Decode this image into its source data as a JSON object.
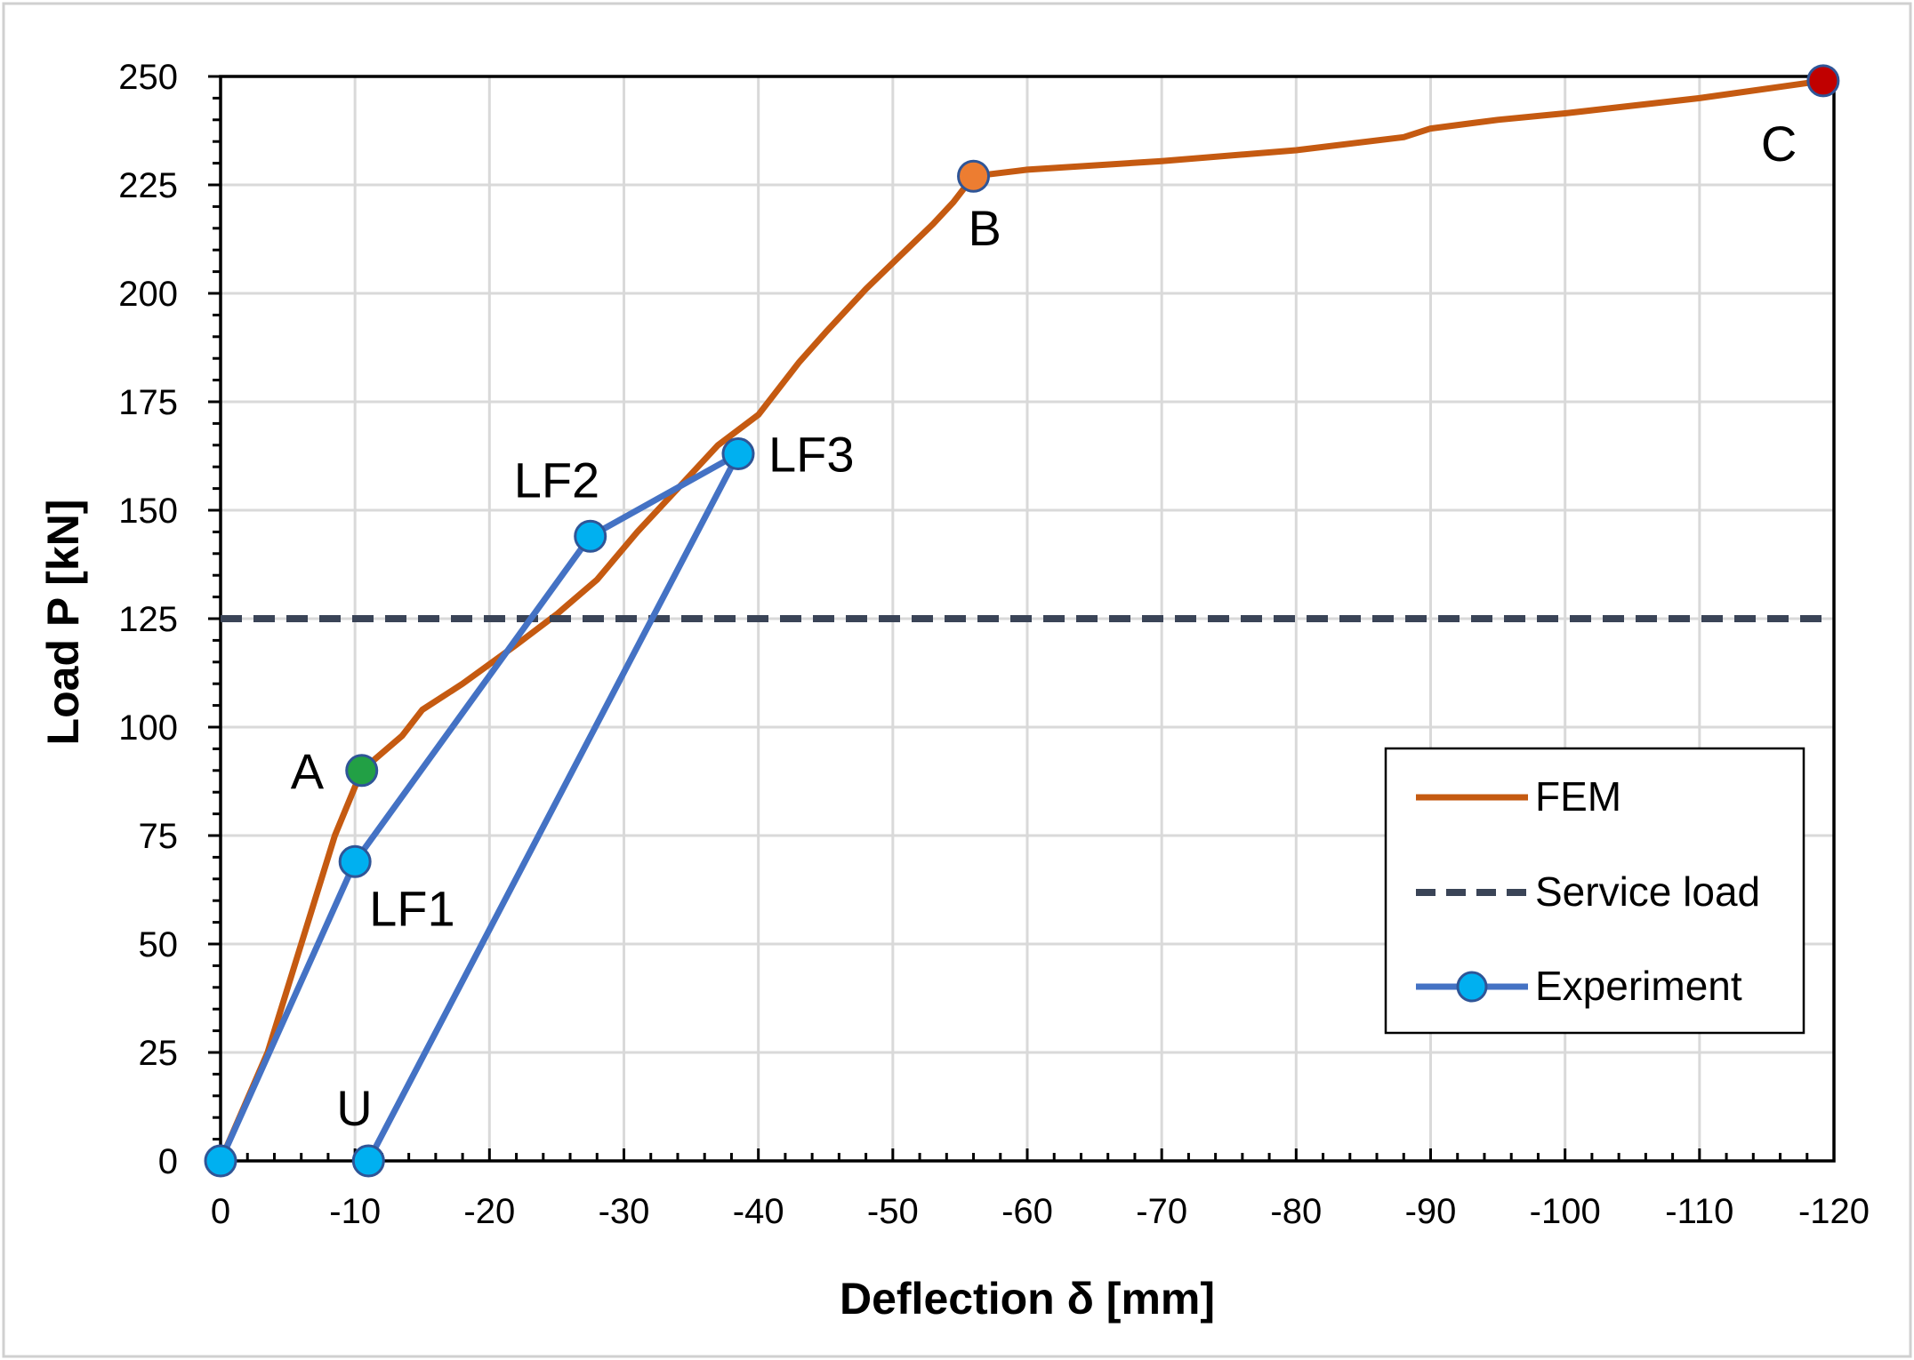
{
  "chart_data": {
    "type": "line",
    "xlabel": "Deflection δ [mm]",
    "ylabel": "Load P [kN]",
    "xlim": [
      0,
      -120
    ],
    "ylim": [
      0,
      250
    ],
    "x_ticks": [
      0,
      -10,
      -20,
      -30,
      -40,
      -50,
      -60,
      -70,
      -80,
      -90,
      -100,
      -110,
      -120
    ],
    "x_tick_labels": [
      "0",
      "-10",
      "-20",
      "-30",
      "-40",
      "-50",
      "-60",
      "-70",
      "-80",
      "-90",
      "-100",
      "-110",
      "-120"
    ],
    "y_ticks": [
      0,
      25,
      50,
      75,
      100,
      125,
      150,
      175,
      200,
      225,
      250
    ],
    "y_tick_labels": [
      "0",
      "25",
      "50",
      "75",
      "100",
      "125",
      "150",
      "175",
      "200",
      "225",
      "250"
    ],
    "grid": true,
    "legend_position": "lower-right",
    "series": [
      {
        "name": "FEM",
        "style": "solid",
        "color": "#C55A11",
        "x": [
          0,
          -3.5,
          -6,
          -8.5,
          -10.5,
          -12,
          -13.5,
          -15,
          -18,
          -22,
          -25,
          -28,
          -31,
          -34,
          -37,
          -40,
          -43,
          -45,
          -48,
          -51,
          -53,
          -54.5,
          -56,
          -60,
          -70,
          -80,
          -88,
          -90,
          -95,
          -100,
          -110,
          -119.2
        ],
        "y": [
          0,
          25,
          50,
          75,
          90,
          94,
          98,
          104,
          110,
          119,
          126,
          134,
          145,
          155,
          165,
          172,
          184,
          191,
          201,
          210,
          216,
          221,
          227,
          228.5,
          230.5,
          233,
          236,
          238,
          240,
          241.5,
          245,
          249
        ]
      },
      {
        "name": "Service load",
        "style": "dashed",
        "color": "#3A4457",
        "x": [
          0,
          -120
        ],
        "y": [
          125,
          125
        ]
      },
      {
        "name": "Experiment",
        "style": "solid-markers",
        "color": "#4472C4",
        "marker_color": "#00B0F0",
        "x": [
          0,
          -10,
          -27.5,
          -38.5,
          -11
        ],
        "y": [
          0,
          69,
          144,
          163,
          0
        ]
      }
    ],
    "highlight_points": [
      {
        "label": "A",
        "x": -10.5,
        "y": 90,
        "color": "#22A045"
      },
      {
        "label": "B",
        "x": -56,
        "y": 227,
        "color": "#ED7D31"
      },
      {
        "label": "C",
        "x": -119.2,
        "y": 249,
        "color": "#C00000"
      }
    ],
    "annotations": [
      {
        "text": "LF1",
        "x": -10,
        "y": 69
      },
      {
        "text": "LF2",
        "x": -27.5,
        "y": 144
      },
      {
        "text": "LF3",
        "x": -38.5,
        "y": 163
      },
      {
        "text": "U",
        "x": -11,
        "y": 0
      }
    ]
  }
}
